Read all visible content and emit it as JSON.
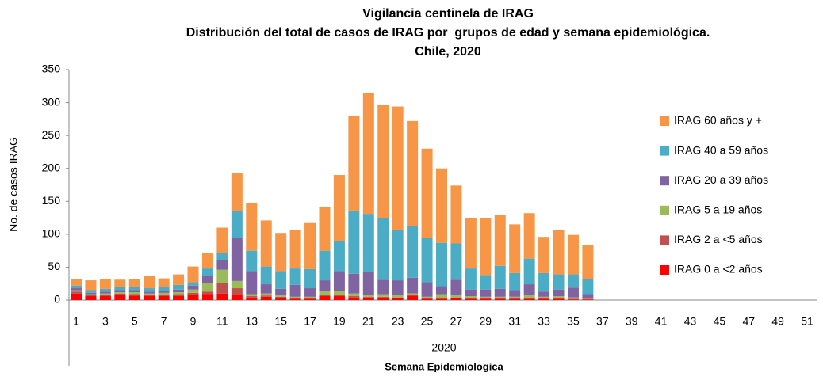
{
  "chart_data": {
    "type": "stacked_bar",
    "title": [
      "Vigilancia centinela de IRAG",
      "Distribución del total de casos de IRAG por  grupos de edad y semana epidemiológica.",
      "Chile, 2020"
    ],
    "ylabel": "No. de casos IRAG",
    "x_group_label": "2020",
    "xlabel": "Semana Epidemiologica",
    "categories": [
      1,
      null,
      3,
      null,
      5,
      null,
      7,
      null,
      9,
      null,
      11,
      null,
      13,
      null,
      15,
      null,
      17,
      null,
      19,
      null,
      21,
      null,
      23,
      null,
      25,
      null,
      27,
      null,
      29,
      null,
      31,
      null,
      33,
      null,
      35,
      null,
      37,
      null,
      39,
      null,
      41,
      null,
      43,
      null,
      45,
      null,
      47,
      null,
      49,
      null,
      51,
      null
    ],
    "ylim": [
      0,
      350
    ],
    "yticks": [
      0,
      50,
      100,
      150,
      200,
      250,
      300,
      350
    ],
    "legend": "right",
    "series": [
      {
        "name": "IRAG 0 a <2 años",
        "color": "#ff0000",
        "values": [
          10,
          6,
          6,
          8,
          7,
          6,
          6,
          6,
          8,
          9,
          10,
          8,
          4,
          5,
          3,
          2,
          2,
          6,
          6,
          4,
          4,
          4,
          3,
          7,
          2,
          2,
          3,
          2,
          2,
          2,
          2,
          2,
          2,
          2,
          1,
          1,
          null,
          null,
          null,
          null,
          null,
          null,
          null,
          null,
          null,
          null,
          null,
          null,
          null,
          null,
          null,
          null
        ]
      },
      {
        "name": "IRAG 2 a <5 años",
        "color": "#c0504d",
        "values": [
          3,
          2,
          2,
          2,
          2,
          2,
          2,
          3,
          3,
          4,
          16,
          10,
          2,
          2,
          2,
          1,
          1,
          2,
          2,
          2,
          1,
          1,
          1,
          1,
          1,
          1,
          1,
          1,
          1,
          1,
          1,
          1,
          1,
          1,
          1,
          1,
          null,
          null,
          null,
          null,
          null,
          null,
          null,
          null,
          null,
          null,
          null,
          null,
          null,
          null,
          null,
          null
        ]
      },
      {
        "name": "IRAG 5 a 19 años",
        "color": "#9bbb59",
        "values": [
          2,
          1,
          2,
          2,
          3,
          2,
          3,
          3,
          5,
          13,
          20,
          11,
          3,
          3,
          2,
          2,
          2,
          5,
          6,
          4,
          3,
          4,
          3,
          2,
          2,
          6,
          3,
          3,
          2,
          2,
          2,
          4,
          2,
          3,
          2,
          1,
          null,
          null,
          null,
          null,
          null,
          null,
          null,
          null,
          null,
          null,
          null,
          null,
          null,
          null,
          null,
          null
        ]
      },
      {
        "name": "IRAG 20 a 39 años",
        "color": "#8064a2",
        "values": [
          3,
          2,
          3,
          3,
          3,
          3,
          3,
          4,
          6,
          11,
          15,
          65,
          35,
          14,
          10,
          18,
          13,
          17,
          30,
          30,
          35,
          22,
          23,
          24,
          22,
          12,
          24,
          10,
          11,
          12,
          10,
          17,
          8,
          10,
          15,
          6,
          null,
          null,
          null,
          null,
          null,
          null,
          null,
          null,
          null,
          null,
          null,
          null,
          null,
          null,
          null,
          null
        ]
      },
      {
        "name": "IRAG 40 a 59 años",
        "color": "#4bacc6",
        "values": [
          4,
          4,
          4,
          5,
          5,
          5,
          6,
          7,
          5,
          11,
          10,
          41,
          31,
          27,
          27,
          25,
          29,
          45,
          46,
          96,
          88,
          94,
          77,
          78,
          67,
          66,
          55,
          32,
          22,
          35,
          26,
          39,
          28,
          23,
          20,
          23,
          null,
          null,
          null,
          null,
          null,
          null,
          null,
          null,
          null,
          null,
          null,
          null,
          null,
          null,
          null,
          null
        ]
      },
      {
        "name": "IRAG 60 años y +",
        "color": "#f79646",
        "values": [
          10,
          15,
          15,
          11,
          12,
          19,
          13,
          16,
          24,
          24,
          39,
          58,
          73,
          70,
          58,
          59,
          70,
          67,
          100,
          144,
          183,
          171,
          187,
          160,
          136,
          113,
          88,
          76,
          86,
          77,
          74,
          69,
          55,
          68,
          60,
          51,
          null,
          null,
          null,
          null,
          null,
          null,
          null,
          null,
          null,
          null,
          null,
          null,
          null,
          null,
          null,
          null
        ]
      }
    ]
  }
}
